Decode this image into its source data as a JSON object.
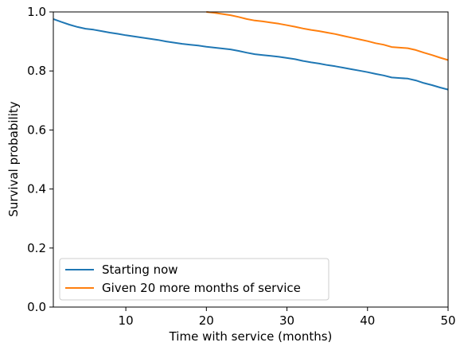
{
  "chart_data": {
    "type": "line",
    "title": "",
    "xlabel": "Time with service (months)",
    "ylabel": "Survival probability",
    "xlim": [
      1,
      50
    ],
    "ylim": [
      0,
      1
    ],
    "xticks": [
      10,
      20,
      30,
      40,
      50
    ],
    "xtick_labels": [
      "10",
      "20",
      "30",
      "40",
      "50"
    ],
    "yticks": [
      0,
      0.2,
      0.4,
      0.6,
      0.8,
      1.0
    ],
    "ytick_labels": [
      "0.0",
      "0.2",
      "0.4",
      "0.6",
      "0.8",
      "1.0"
    ],
    "grid": false,
    "legend_position": "lower-left",
    "series": [
      {
        "name": "Starting now",
        "color": "#1f77b4",
        "x": [
          1,
          2,
          3,
          4,
          5,
          6,
          7,
          8,
          9,
          10,
          11,
          12,
          13,
          14,
          15,
          16,
          17,
          18,
          19,
          20,
          21,
          22,
          23,
          24,
          25,
          26,
          27,
          28,
          29,
          30,
          31,
          32,
          33,
          34,
          35,
          36,
          37,
          38,
          39,
          40,
          41,
          42,
          43,
          44,
          45,
          46,
          47,
          48,
          49,
          50
        ],
        "y": [
          0.976,
          0.966,
          0.957,
          0.949,
          0.943,
          0.94,
          0.935,
          0.93,
          0.926,
          0.921,
          0.917,
          0.913,
          0.909,
          0.905,
          0.9,
          0.896,
          0.892,
          0.889,
          0.886,
          0.882,
          0.879,
          0.876,
          0.873,
          0.868,
          0.862,
          0.857,
          0.854,
          0.851,
          0.848,
          0.844,
          0.84,
          0.834,
          0.829,
          0.825,
          0.82,
          0.816,
          0.811,
          0.806,
          0.801,
          0.796,
          0.79,
          0.785,
          0.778,
          0.776,
          0.774,
          0.768,
          0.759,
          0.752,
          0.744,
          0.737
        ]
      },
      {
        "name": "Given 20 more months of service",
        "color": "#ff7f0e",
        "x": [
          20,
          21,
          22,
          23,
          24,
          25,
          26,
          27,
          28,
          29,
          30,
          31,
          32,
          33,
          34,
          35,
          36,
          37,
          38,
          39,
          40,
          41,
          42,
          43,
          44,
          45,
          46,
          47,
          48,
          49,
          50
        ],
        "y": [
          1.0,
          0.997,
          0.993,
          0.989,
          0.983,
          0.976,
          0.971,
          0.968,
          0.964,
          0.96,
          0.955,
          0.95,
          0.944,
          0.939,
          0.935,
          0.93,
          0.925,
          0.919,
          0.913,
          0.907,
          0.901,
          0.894,
          0.889,
          0.881,
          0.879,
          0.877,
          0.871,
          0.862,
          0.854,
          0.845,
          0.837
        ]
      }
    ]
  }
}
